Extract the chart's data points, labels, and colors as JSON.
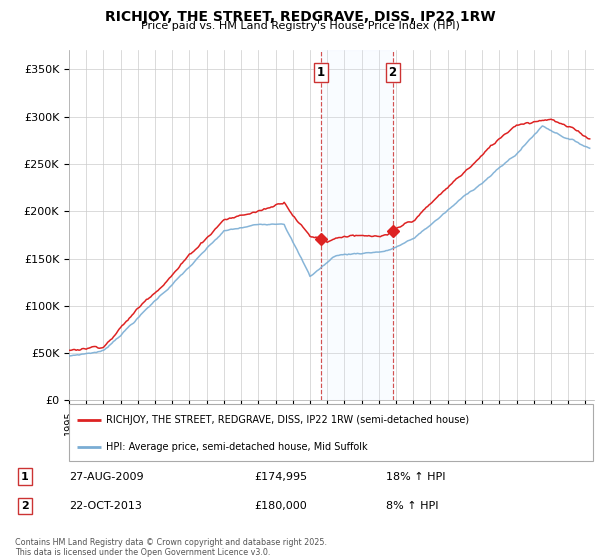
{
  "title": "RICHJOY, THE STREET, REDGRAVE, DISS, IP22 1RW",
  "subtitle": "Price paid vs. HM Land Registry's House Price Index (HPI)",
  "ylim": [
    0,
    370000
  ],
  "yticks": [
    0,
    50000,
    100000,
    150000,
    200000,
    250000,
    300000,
    350000
  ],
  "ytick_labels": [
    "£0",
    "£50K",
    "£100K",
    "£150K",
    "£200K",
    "£250K",
    "£300K",
    "£350K"
  ],
  "red_line_color": "#dd2222",
  "blue_line_color": "#7aadd4",
  "shade_color": "#ddeeff",
  "marker1_year": 2009.65,
  "marker2_year": 2013.8,
  "marker1_price": 174995,
  "marker2_price": 180000,
  "legend1": "RICHJOY, THE STREET, REDGRAVE, DISS, IP22 1RW (semi-detached house)",
  "legend2": "HPI: Average price, semi-detached house, Mid Suffolk",
  "table_row1": [
    "1",
    "27-AUG-2009",
    "£174,995",
    "18% ↑ HPI"
  ],
  "table_row2": [
    "2",
    "22-OCT-2013",
    "£180,000",
    "8% ↑ HPI"
  ],
  "footer": "Contains HM Land Registry data © Crown copyright and database right 2025.\nThis data is licensed under the Open Government Licence v3.0.",
  "bg_color": "#ffffff",
  "grid_color": "#cccccc"
}
